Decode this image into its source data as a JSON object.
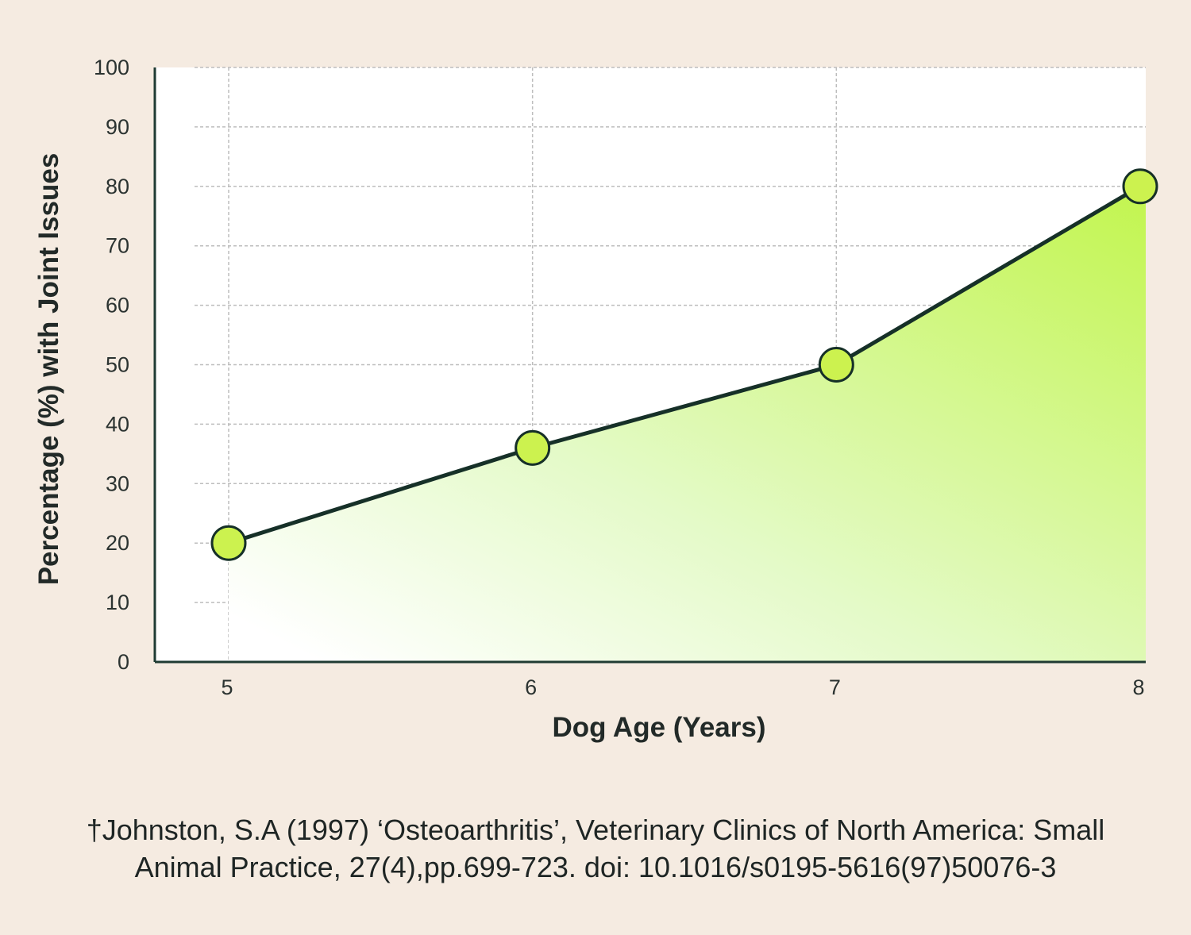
{
  "chart_data": {
    "type": "area",
    "title": "",
    "xlabel": "Dog Age (Years)",
    "ylabel": "Percentage (%) with Joint Issues",
    "x": [
      5,
      6,
      7,
      8
    ],
    "x_ticks": [
      "5",
      "6",
      "7",
      "8"
    ],
    "series": [
      {
        "values": [
          20,
          36,
          50,
          80
        ]
      }
    ],
    "ylim": [
      0,
      100
    ],
    "y_ticks": [
      "0",
      "10",
      "20",
      "30",
      "40",
      "50",
      "60",
      "70",
      "80",
      "90",
      "100"
    ],
    "grid": true,
    "legend": "none",
    "colors": {
      "fill_light": "#ffffff",
      "fill_mid": "#e4fac8",
      "fill_strong": "#c2f54e",
      "marker": "#ccf24f",
      "line": "#163028",
      "grid": "#bdbdbd",
      "axis": "#1f3b33"
    }
  },
  "citation": {
    "line1": "†Johnston, S.A (1997) ‘Osteoarthritis’, Veterinary Clinics of North America: Small",
    "line2": "Animal Practice, 27(4),pp.699-723. doi: 10.1016/s0195-5616(97)50076-3"
  }
}
